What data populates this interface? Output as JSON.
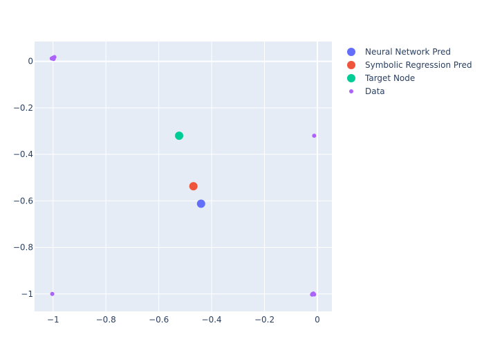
{
  "chart_data": {
    "type": "scatter",
    "title": "",
    "xlabel": "",
    "ylabel": "",
    "xlim": [
      -1.07,
      0.055
    ],
    "ylim": [
      -1.075,
      0.085
    ],
    "x_ticks": [
      -1,
      -0.8,
      -0.6,
      -0.4,
      -0.2,
      0
    ],
    "x_tick_labels": [
      "−1",
      "−0.8",
      "−0.6",
      "−0.4",
      "−0.2",
      "0"
    ],
    "y_ticks": [
      0,
      -0.2,
      -0.4,
      -0.6,
      -0.8,
      -1
    ],
    "y_tick_labels": [
      "0",
      "−0.2",
      "−0.4",
      "−0.6",
      "−0.8",
      "−1"
    ],
    "grid": true,
    "legend_position": "top-right",
    "series": [
      {
        "name": "Neural Network Pred",
        "color": "#636efa",
        "marker_size": "large",
        "points": [
          [
            -0.44,
            -0.612
          ]
        ]
      },
      {
        "name": "Symbolic Regression Pred",
        "color": "#ef553b",
        "marker_size": "large",
        "points": [
          [
            -0.469,
            -0.537
          ]
        ]
      },
      {
        "name": "Target Node",
        "color": "#00cc96",
        "marker_size": "large",
        "points": [
          [
            -0.523,
            -0.32
          ]
        ]
      },
      {
        "name": "Data",
        "color": "#ab63fa",
        "marker_size": "small",
        "points": [
          [
            -1.005,
            0.012
          ],
          [
            -0.995,
            0.018
          ],
          [
            -0.998,
            0.01
          ],
          [
            -1.0,
            0.015
          ],
          [
            -1.003,
            -1.0
          ],
          [
            -0.012,
            -0.32
          ],
          [
            -0.018,
            -1.0
          ],
          [
            -0.012,
            -1.002
          ],
          [
            -0.015,
            -0.998
          ],
          [
            -0.02,
            -1.003
          ]
        ]
      }
    ]
  }
}
